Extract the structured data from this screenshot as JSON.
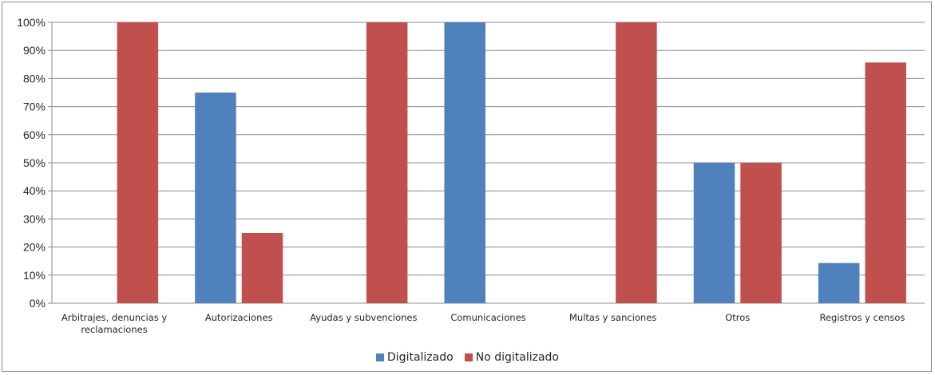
{
  "chart_data": {
    "type": "bar",
    "title": "",
    "xlabel": "",
    "ylabel": "",
    "ylim": [
      0,
      100
    ],
    "y_ticks": [
      "0%",
      "10%",
      "20%",
      "30%",
      "40%",
      "50%",
      "60%",
      "70%",
      "80%",
      "90%",
      "100%"
    ],
    "grid": true,
    "legend_position": "bottom",
    "categories": [
      "Arbitrajes, denuncias y reclamaciones",
      "Autorizaciones",
      "Ayudas y subvenciones",
      "Comunicaciones",
      "Multas y sanciones",
      "Otros",
      "Registros y censos"
    ],
    "series": [
      {
        "name": "Digitalizado",
        "color": "#4f81bd",
        "values": [
          0,
          75,
          0,
          100,
          0,
          50,
          14.3
        ]
      },
      {
        "name": "No digitalizado",
        "color": "#c0504d",
        "values": [
          100,
          25,
          100,
          0,
          100,
          50,
          85.7
        ]
      }
    ]
  }
}
